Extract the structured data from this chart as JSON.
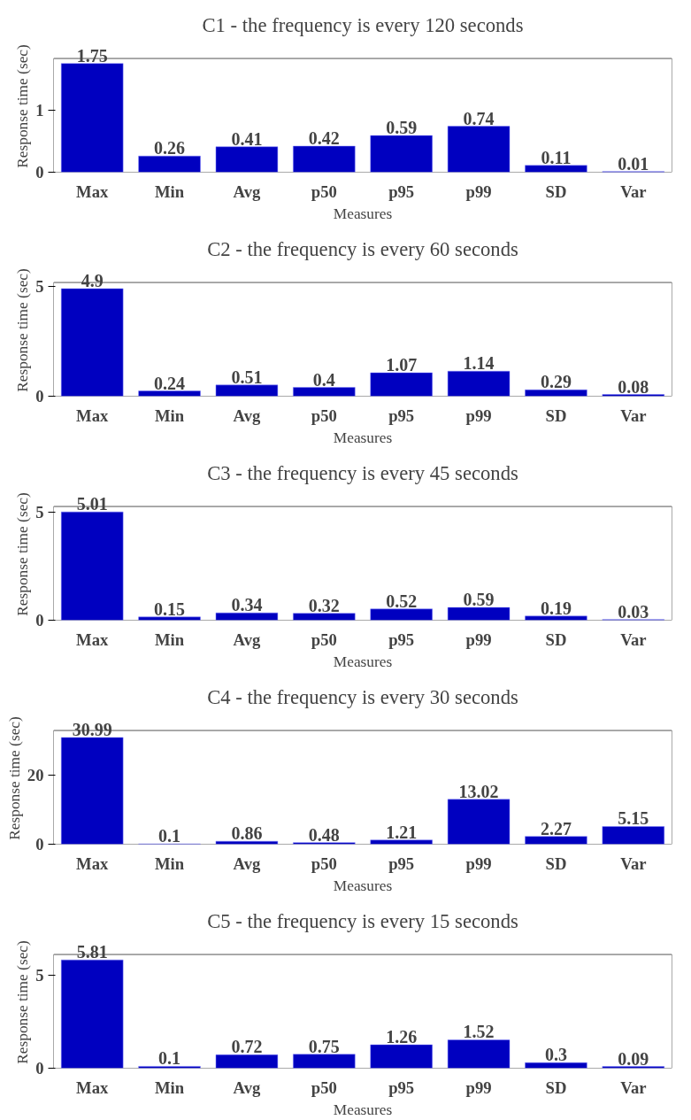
{
  "chart_data": [
    {
      "type": "bar",
      "title": "C1 - the frequency is every 120 seconds",
      "xlabel": "Measures",
      "ylabel": "Response time (sec)",
      "categories": [
        "Max",
        "Min",
        "Avg",
        "p50",
        "p95",
        "p99",
        "SD",
        "Var"
      ],
      "values": [
        1.75,
        0.26,
        0.41,
        0.42,
        0.59,
        0.74,
        0.11,
        0.01
      ],
      "color": "#0000c0",
      "ylim": [
        0,
        1.83
      ],
      "yticks": [
        0,
        1
      ],
      "data_labels": true,
      "grid": false
    },
    {
      "type": "bar",
      "title": "C2 - the frequency is every 60 seconds",
      "xlabel": "Measures",
      "ylabel": "Response time (sec)",
      "categories": [
        "Max",
        "Min",
        "Avg",
        "p50",
        "p95",
        "p99",
        "SD",
        "Var"
      ],
      "values": [
        4.9,
        0.24,
        0.51,
        0.4,
        1.07,
        1.14,
        0.29,
        0.08
      ],
      "color": "#0000c0",
      "ylim": [
        0,
        5.18
      ],
      "yticks": [
        0,
        5
      ],
      "data_labels": true,
      "grid": false
    },
    {
      "type": "bar",
      "title": "C3 - the frequency is every 45 seconds",
      "xlabel": "Measures",
      "ylabel": "Response time (sec)",
      "categories": [
        "Max",
        "Min",
        "Avg",
        "p50",
        "p95",
        "p99",
        "SD",
        "Var"
      ],
      "values": [
        5.01,
        0.15,
        0.34,
        0.32,
        0.52,
        0.59,
        0.19,
        0.03
      ],
      "color": "#0000c0",
      "ylim": [
        0,
        5.26
      ],
      "yticks": [
        0,
        5
      ],
      "data_labels": true,
      "grid": false
    },
    {
      "type": "bar",
      "title": "C4 - the frequency is every 30 seconds",
      "xlabel": "Measures",
      "ylabel": "Response time (sec)",
      "categories": [
        "Max",
        "Min",
        "Avg",
        "p50",
        "p95",
        "p99",
        "SD",
        "Var"
      ],
      "values": [
        30.99,
        0.1,
        0.86,
        0.48,
        1.21,
        13.02,
        2.27,
        5.15
      ],
      "color": "#0000c0",
      "ylim": [
        0,
        33
      ],
      "yticks": [
        0,
        20
      ],
      "data_labels": true,
      "grid": false
    },
    {
      "type": "bar",
      "title": "C5 - the frequency is every 15 seconds",
      "xlabel": "Measures",
      "ylabel": "Response time (sec)",
      "categories": [
        "Max",
        "Min",
        "Avg",
        "p50",
        "p95",
        "p99",
        "SD",
        "Var"
      ],
      "values": [
        5.81,
        0.1,
        0.72,
        0.75,
        1.26,
        1.52,
        0.3,
        0.09
      ],
      "color": "#0000c0",
      "ylim": [
        0,
        6.1
      ],
      "yticks": [
        0,
        5
      ],
      "data_labels": true,
      "grid": false
    }
  ]
}
